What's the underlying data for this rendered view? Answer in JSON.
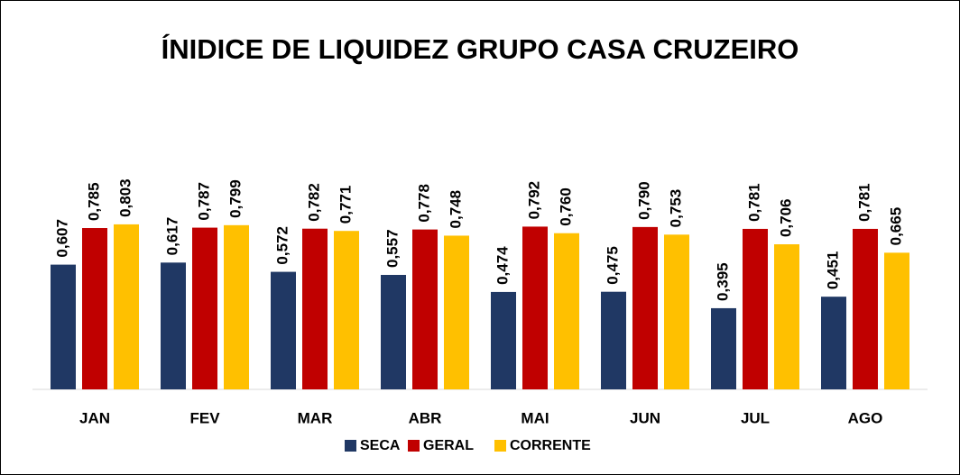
{
  "chart_data": {
    "type": "bar",
    "title": "ÍNIDICE DE LIQUIDEZ GRUPO CASA CRUZEIRO",
    "categories": [
      "JAN",
      "FEV",
      "MAR",
      "ABR",
      "MAI",
      "JUN",
      "JUL",
      "AGO"
    ],
    "series": [
      {
        "name": "SECA",
        "color": "#203864",
        "values": [
          0.607,
          0.617,
          0.572,
          0.557,
          0.474,
          0.475,
          0.395,
          0.451
        ],
        "value_labels": [
          "0,607",
          "0,617",
          "0,572",
          "0,557",
          "0,474",
          "0,475",
          "0,395",
          "0,451"
        ]
      },
      {
        "name": "GERAL",
        "color": "#c00000",
        "values": [
          0.785,
          0.787,
          0.782,
          0.778,
          0.792,
          0.79,
          0.781,
          0.781
        ],
        "value_labels": [
          "0,785",
          "0,787",
          "0,782",
          "0,778",
          "0,792",
          "0,790",
          "0,781",
          "0,781"
        ]
      },
      {
        "name": "CORRENTE",
        "color": "#ffc000",
        "values": [
          0.803,
          0.799,
          0.771,
          0.748,
          0.76,
          0.753,
          0.706,
          0.665
        ],
        "value_labels": [
          "0,803",
          "0,799",
          "0,771",
          "0,748",
          "0,760",
          "0,753",
          "0,706",
          "0,665"
        ]
      }
    ],
    "ylim": [
      0,
      1
    ],
    "legend": "bottom"
  }
}
